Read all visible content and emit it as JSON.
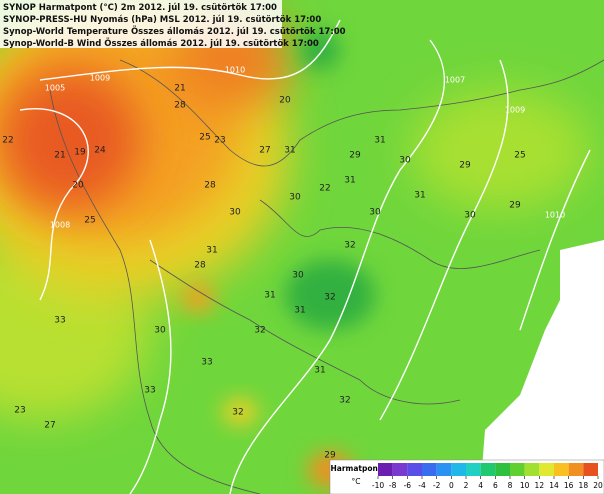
{
  "header": {
    "lines": [
      "SYNOP Harmatpont (°C) 2m 2012. júl 19. csütörtök 17:00",
      "SYNOP-PRESS-HU Nyomás (hPa) MSL 2012. júl 19. csütörtök 17:00",
      "Synop-World Temperature Összes állomás 2012. júl 19. csütörtök 17:00",
      "Synop-World-B Wind Összes állomás 2012. júl 19. csütörtök 17:00"
    ]
  },
  "legend": {
    "title": "Harmatpont",
    "unit": "°C",
    "ticks": [
      -10,
      -8,
      -6,
      -4,
      -2,
      0,
      2,
      4,
      6,
      8,
      10,
      12,
      14,
      16,
      18,
      20
    ],
    "colors": [
      "#6a1fb0",
      "#7a3ad0",
      "#5a4ee8",
      "#3a6cf0",
      "#2a92f0",
      "#20b8e8",
      "#20d0c0",
      "#20c870",
      "#30c040",
      "#60d030",
      "#a0e030",
      "#e0e830",
      "#f8c020",
      "#f09020",
      "#e85020"
    ]
  },
  "isobars": [
    "1010",
    "1009",
    "1007",
    "1009",
    "1010",
    "1008",
    "1005"
  ],
  "stations": [
    22,
    21,
    19,
    20,
    24,
    25,
    28,
    21,
    25,
    23,
    28,
    27,
    20,
    31,
    30,
    30,
    22,
    31,
    29,
    31,
    30,
    31,
    29,
    25,
    29,
    30,
    30,
    32,
    32,
    31,
    30,
    31,
    32,
    33,
    32,
    30,
    33,
    23,
    27,
    29,
    32,
    31,
    28,
    31,
    33
  ]
}
